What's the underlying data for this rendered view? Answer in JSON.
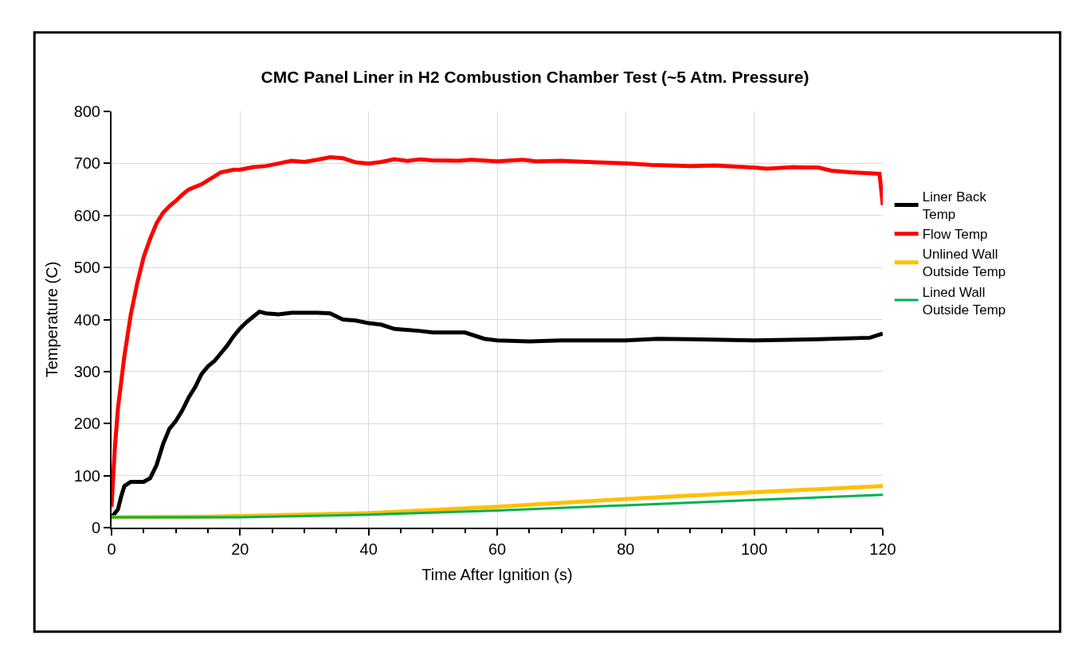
{
  "chart_data": {
    "type": "line",
    "title": "CMC Panel Liner in H2 Combustion Chamber Test (~5 Atm. Pressure)",
    "xlabel": "Time After Ignition (s)",
    "ylabel": "Temperature (C)",
    "xlim": [
      0,
      120
    ],
    "xticks": [
      0,
      20,
      40,
      60,
      80,
      100,
      120
    ],
    "ylim": [
      0,
      800
    ],
    "yticks": [
      0,
      100,
      200,
      300,
      400,
      500,
      600,
      700,
      800
    ],
    "grid": true,
    "legend": "right",
    "marker": "none",
    "line_style": "solid",
    "series": [
      {
        "name": "Liner Back Temp",
        "color": "#000000",
        "x": [
          0,
          1,
          1.5,
          2,
          3,
          5,
          6,
          7,
          8,
          9,
          10,
          11,
          12,
          13,
          14,
          15,
          16,
          17,
          18,
          19,
          20,
          21,
          22,
          23,
          24,
          26,
          28,
          32,
          34,
          36,
          38,
          40,
          42,
          44,
          48,
          50,
          55,
          58,
          60,
          65,
          70,
          80,
          85,
          90,
          100,
          110,
          118,
          120
        ],
        "values": [
          20,
          35,
          60,
          80,
          88,
          88,
          95,
          120,
          160,
          190,
          205,
          225,
          250,
          270,
          295,
          310,
          320,
          335,
          350,
          368,
          383,
          395,
          405,
          415,
          412,
          410,
          413,
          413,
          412,
          400,
          398,
          393,
          390,
          382,
          378,
          375,
          375,
          363,
          360,
          358,
          360,
          360,
          363,
          362,
          360,
          362,
          365,
          373
        ]
      },
      {
        "name": "Flow Temp",
        "color": "#ff0000",
        "x": [
          0,
          0.5,
          1,
          2,
          3,
          4,
          5,
          6,
          7,
          8,
          9,
          10,
          11,
          12,
          14,
          16,
          17,
          19,
          20,
          22,
          24,
          26,
          28,
          30,
          32,
          34,
          36,
          38,
          40,
          42,
          44,
          46,
          48,
          50,
          54,
          56,
          60,
          64,
          66,
          70,
          74,
          80,
          84,
          90,
          94,
          100,
          102,
          106,
          110,
          112,
          115,
          118,
          119.5,
          120
        ],
        "values": [
          40,
          150,
          230,
          330,
          410,
          470,
          520,
          555,
          585,
          605,
          618,
          628,
          640,
          650,
          660,
          675,
          683,
          688,
          688,
          693,
          695,
          700,
          705,
          703,
          707,
          712,
          710,
          702,
          700,
          703,
          708,
          705,
          708,
          706,
          705,
          707,
          704,
          707,
          704,
          705,
          703,
          700,
          697,
          695,
          696,
          692,
          690,
          693,
          692,
          686,
          683,
          681,
          680,
          620
        ]
      },
      {
        "name": "Unlined Wall Outside Temp",
        "color": "#ffc000",
        "x": [
          0,
          15,
          40,
          60,
          80,
          100,
          120
        ],
        "values": [
          20,
          21,
          28,
          40,
          55,
          68,
          80
        ]
      },
      {
        "name": "Lined Wall Outside Temp",
        "color": "#00b050",
        "x": [
          0,
          20,
          40,
          60,
          80,
          100,
          120
        ],
        "values": [
          20,
          20,
          25,
          33,
          43,
          53,
          63
        ]
      }
    ]
  }
}
